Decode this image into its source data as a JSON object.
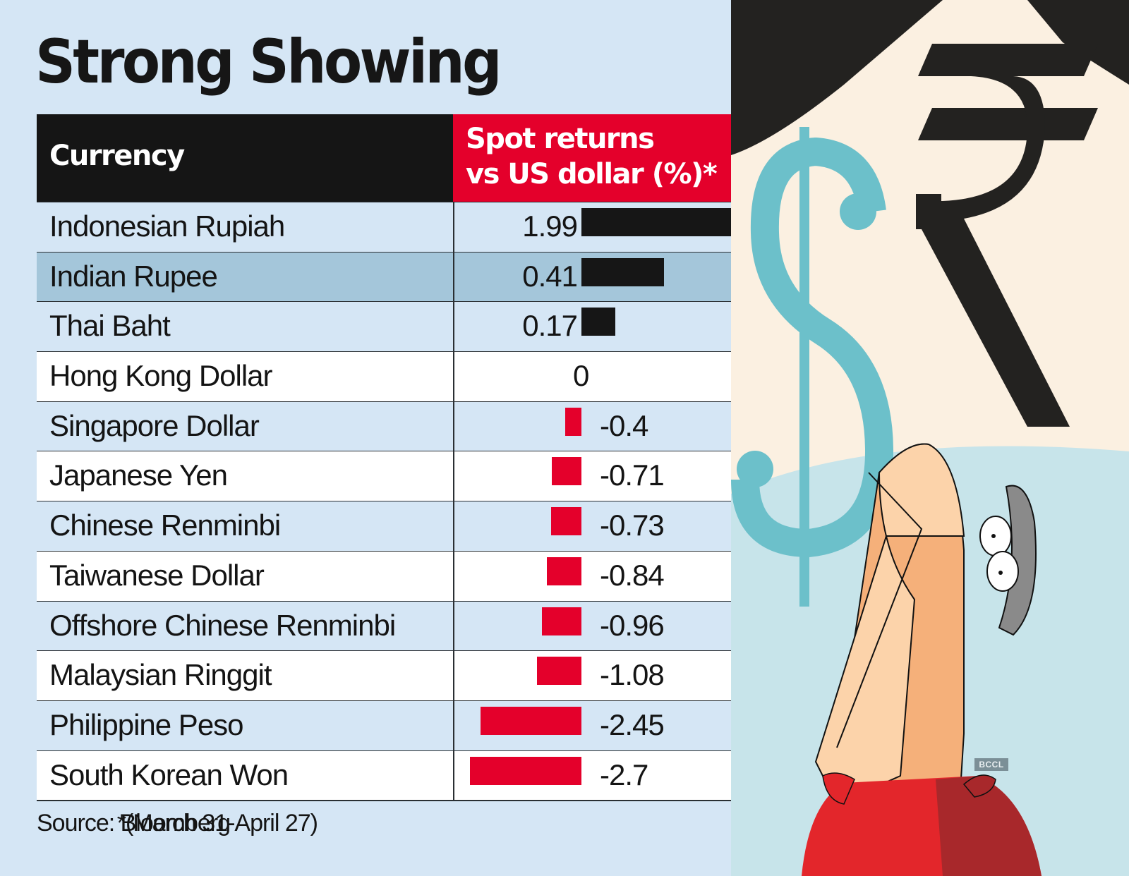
{
  "title": "Strong Showing",
  "table": {
    "headers": {
      "currency": "Currency",
      "returns_line1": "Spot returns",
      "returns_line2": "vs US dollar (%)*"
    },
    "rows": [
      {
        "name": "Indonesian Rupiah",
        "value": "1.99",
        "bg": "blue"
      },
      {
        "name": "Indian Rupee",
        "value": "0.41",
        "bg": "highlight"
      },
      {
        "name": "Thai Baht",
        "value": "0.17",
        "bg": "blue"
      },
      {
        "name": "Hong Kong Dollar",
        "value": "0",
        "bg": "white"
      },
      {
        "name": "Singapore Dollar",
        "value": "-0.4",
        "bg": "blue"
      },
      {
        "name": "Japanese Yen",
        "value": "-0.71",
        "bg": "white"
      },
      {
        "name": "Chinese Renminbi",
        "value": "-0.73",
        "bg": "blue"
      },
      {
        "name": "Taiwanese Dollar",
        "value": "-0.84",
        "bg": "white"
      },
      {
        "name": "Offshore Chinese Renminbi",
        "value": "-0.96",
        "bg": "blue"
      },
      {
        "name": "Malaysian Ringgit",
        "value": "-1.08",
        "bg": "white"
      },
      {
        "name": "Philippine Peso",
        "value": "-2.45",
        "bg": "blue"
      },
      {
        "name": "South Korean Won",
        "value": "-2.7",
        "bg": "white"
      }
    ]
  },
  "footer": {
    "source": "Source: Bloomberg",
    "note": "*(March 31-April 27)"
  },
  "illustration": {
    "watermark": "BCCL",
    "icons": [
      "dollar-sign",
      "rupee-sign",
      "cartoon-man"
    ]
  },
  "colors": {
    "background": "#d5e6f5",
    "row_white": "#ffffff",
    "row_highlight": "#a4c6da",
    "header_black": "#151515",
    "header_red": "#e4002b",
    "bar_positive": "#161616",
    "bar_negative": "#e4002b"
  },
  "chart_data": {
    "type": "bar",
    "orientation": "horizontal",
    "title": "Strong Showing",
    "xlabel": "Spot returns vs US dollar (%)*",
    "ylabel": "Currency",
    "categories": [
      "Indonesian Rupiah",
      "Indian Rupee",
      "Thai Baht",
      "Hong Kong Dollar",
      "Singapore Dollar",
      "Japanese Yen",
      "Chinese Renminbi",
      "Taiwanese Dollar",
      "Offshore Chinese Renminbi",
      "Malaysian Ringgit",
      "Philippine Peso",
      "South Korean Won"
    ],
    "values": [
      1.99,
      0.41,
      0.17,
      0,
      -0.4,
      -0.71,
      -0.73,
      -0.84,
      -0.96,
      -1.08,
      -2.45,
      -2.7
    ],
    "highlighted": "Indian Rupee",
    "annotations": [
      "Source: Bloomberg",
      "*(March 31-April 27)"
    ],
    "grid": false,
    "legend": null
  }
}
